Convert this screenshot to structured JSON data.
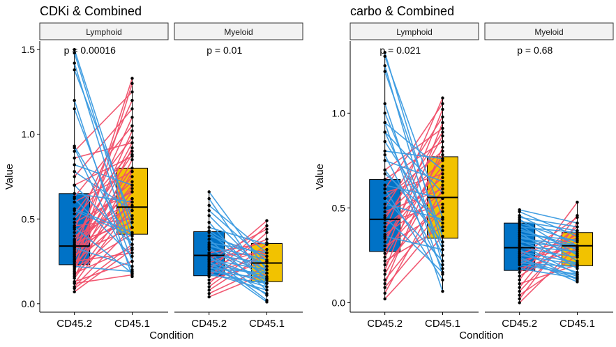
{
  "colors": {
    "box_CD45.2": "#0072C6",
    "box_CD45.1": "#F2C200",
    "line_up": "#F0506A",
    "line_down": "#3B9BE0",
    "strip_fill": "#F2F2F2",
    "point": "#000000"
  },
  "chart_data": [
    {
      "type": "box",
      "title": "CDKi & Combined",
      "xlabel": "Condition",
      "ylabel": "Value",
      "ylim": [
        -0.05,
        1.55
      ],
      "yticks": [
        "0.0",
        "0.5",
        "1.0",
        "1.5"
      ],
      "categories": [
        "CD45.2",
        "CD45.1"
      ],
      "grid": false,
      "facets": [
        {
          "label": "Lymphoid",
          "p_value": "p = 0.00016",
          "boxes": [
            {
              "name": "CD45.2",
              "q1": 0.23,
              "median": 0.34,
              "q3": 0.65,
              "whisker_low": 0.07,
              "whisker_high": 1.5
            },
            {
              "name": "CD45.1",
              "q1": 0.41,
              "median": 0.57,
              "q3": 0.8,
              "whisker_low": 0.16,
              "whisker_high": 1.33
            }
          ],
          "pairs": [
            [
              0.07,
              0.32
            ],
            [
              0.09,
              0.35
            ],
            [
              0.1,
              0.45
            ],
            [
              0.12,
              0.58
            ],
            [
              0.13,
              0.25
            ],
            [
              0.15,
              0.62
            ],
            [
              0.16,
              0.78
            ],
            [
              0.17,
              0.5
            ],
            [
              0.18,
              0.33
            ],
            [
              0.2,
              0.85
            ],
            [
              0.21,
              0.41
            ],
            [
              0.22,
              0.66
            ],
            [
              0.23,
              0.92
            ],
            [
              0.24,
              0.55
            ],
            [
              0.25,
              0.3
            ],
            [
              0.26,
              1.02
            ],
            [
              0.27,
              0.7
            ],
            [
              0.28,
              0.6
            ],
            [
              0.29,
              0.45
            ],
            [
              0.3,
              0.8
            ],
            [
              0.31,
              0.95
            ],
            [
              0.32,
              0.52
            ],
            [
              0.33,
              0.68
            ],
            [
              0.34,
              0.75
            ],
            [
              0.35,
              1.1
            ],
            [
              0.36,
              0.48
            ],
            [
              0.37,
              0.62
            ],
            [
              0.38,
              0.88
            ],
            [
              0.4,
              0.57
            ],
            [
              0.42,
              0.72
            ],
            [
              0.44,
              1.2
            ],
            [
              0.46,
              0.5
            ],
            [
              0.48,
              0.66
            ],
            [
              0.5,
              0.9
            ],
            [
              0.53,
              0.98
            ],
            [
              0.56,
              0.42
            ],
            [
              0.6,
              0.78
            ],
            [
              0.63,
              1.05
            ],
            [
              0.65,
              0.6
            ],
            [
              0.7,
              0.87
            ],
            [
              0.75,
              1.15
            ],
            [
              0.78,
              0.55
            ],
            [
              0.82,
              0.7
            ],
            [
              0.86,
              0.95
            ],
            [
              0.9,
              1.25
            ],
            [
              0.93,
              0.35
            ],
            [
              0.28,
              1.33
            ],
            [
              0.19,
              1.3
            ],
            [
              1.5,
              0.45
            ],
            [
              1.48,
              0.38
            ],
            [
              1.42,
              0.3
            ],
            [
              1.38,
              0.5
            ],
            [
              1.2,
              0.16
            ],
            [
              1.15,
              0.25
            ],
            [
              0.92,
              0.2
            ],
            [
              0.7,
              0.35
            ],
            [
              0.62,
              0.28
            ],
            [
              0.55,
              0.4
            ],
            [
              0.45,
              0.18
            ],
            [
              0.33,
              0.22
            ],
            [
              0.22,
              0.19
            ],
            [
              0.12,
              0.17
            ]
          ]
        },
        {
          "label": "Myeloid",
          "p_value": "p = 0.01",
          "boxes": [
            {
              "name": "CD45.2",
              "q1": 0.165,
              "median": 0.285,
              "q3": 0.425,
              "whisker_low": 0.04,
              "whisker_high": 0.66
            },
            {
              "name": "CD45.1",
              "q1": 0.13,
              "median": 0.24,
              "q3": 0.355,
              "whisker_low": 0.01,
              "whisker_high": 0.49
            }
          ],
          "pairs": [
            [
              0.04,
              0.18
            ],
            [
              0.06,
              0.22
            ],
            [
              0.08,
              0.3
            ],
            [
              0.1,
              0.35
            ],
            [
              0.12,
              0.42
            ],
            [
              0.14,
              0.25
            ],
            [
              0.16,
              0.46
            ],
            [
              0.18,
              0.28
            ],
            [
              0.2,
              0.49
            ],
            [
              0.22,
              0.32
            ],
            [
              0.24,
              0.38
            ],
            [
              0.26,
              0.44
            ],
            [
              0.28,
              0.3
            ],
            [
              0.3,
              0.36
            ],
            [
              0.66,
              0.2
            ],
            [
              0.62,
              0.12
            ],
            [
              0.58,
              0.3
            ],
            [
              0.55,
              0.25
            ],
            [
              0.52,
              0.18
            ],
            [
              0.48,
              0.1
            ],
            [
              0.45,
              0.35
            ],
            [
              0.43,
              0.22
            ],
            [
              0.42,
              0.15
            ],
            [
              0.4,
              0.28
            ],
            [
              0.38,
              0.08
            ],
            [
              0.36,
              0.3
            ],
            [
              0.35,
              0.2
            ],
            [
              0.34,
              0.26
            ],
            [
              0.33,
              0.12
            ],
            [
              0.32,
              0.18
            ],
            [
              0.3,
              0.05
            ],
            [
              0.29,
              0.24
            ],
            [
              0.28,
              0.02
            ],
            [
              0.27,
              0.14
            ],
            [
              0.26,
              0.2
            ],
            [
              0.25,
              0.01
            ],
            [
              0.24,
              0.16
            ],
            [
              0.23,
              0.12
            ],
            [
              0.22,
              0.06
            ],
            [
              0.21,
              0.18
            ],
            [
              0.2,
              0.1
            ],
            [
              0.19,
              0.15
            ],
            [
              0.18,
              0.08
            ],
            [
              0.17,
              0.12
            ]
          ]
        }
      ]
    },
    {
      "type": "box",
      "title": "carbo & Combined",
      "xlabel": "Condition",
      "ylabel": "Value",
      "ylim": [
        -0.05,
        1.38
      ],
      "yticks": [
        "0.0",
        "0.5",
        "1.0"
      ],
      "categories": [
        "CD45.2",
        "CD45.1"
      ],
      "grid": false,
      "facets": [
        {
          "label": "Lymphoid",
          "p_value": "p = 0.021",
          "boxes": [
            {
              "name": "CD45.2",
              "q1": 0.27,
              "median": 0.44,
              "q3": 0.65,
              "whisker_low": 0.02,
              "whisker_high": 1.32
            },
            {
              "name": "CD45.1",
              "q1": 0.34,
              "median": 0.555,
              "q3": 0.77,
              "whisker_low": 0.06,
              "whisker_high": 1.08
            }
          ],
          "pairs": [
            [
              0.02,
              0.35
            ],
            [
              0.05,
              0.6
            ],
            [
              0.08,
              0.45
            ],
            [
              0.1,
              0.82
            ],
            [
              0.12,
              0.5
            ],
            [
              0.15,
              0.7
            ],
            [
              0.17,
              0.95
            ],
            [
              0.2,
              0.55
            ],
            [
              0.22,
              0.4
            ],
            [
              0.24,
              0.78
            ],
            [
              0.26,
              1.02
            ],
            [
              0.28,
              0.62
            ],
            [
              0.3,
              0.48
            ],
            [
              0.32,
              0.88
            ],
            [
              0.34,
              0.72
            ],
            [
              0.36,
              0.58
            ],
            [
              0.38,
              1.08
            ],
            [
              0.4,
              0.66
            ],
            [
              0.42,
              0.52
            ],
            [
              0.44,
              0.9
            ],
            [
              0.46,
              0.75
            ],
            [
              0.48,
              0.6
            ],
            [
              0.5,
              0.98
            ],
            [
              0.52,
              0.44
            ],
            [
              0.55,
              0.8
            ],
            [
              0.58,
              0.68
            ],
            [
              0.6,
              1.05
            ],
            [
              0.62,
              0.55
            ],
            [
              0.65,
              0.85
            ],
            [
              0.68,
              0.42
            ],
            [
              0.7,
              0.92
            ],
            [
              0.75,
              0.64
            ],
            [
              0.8,
              0.76
            ],
            [
              0.85,
              0.38
            ],
            [
              0.9,
              0.58
            ],
            [
              0.95,
              0.7
            ],
            [
              1.32,
              0.3
            ],
            [
              1.3,
              0.45
            ],
            [
              1.25,
              0.2
            ],
            [
              1.22,
              0.35
            ],
            [
              1.05,
              0.15
            ],
            [
              1.0,
              0.28
            ],
            [
              0.95,
              0.06
            ],
            [
              0.9,
              0.25
            ],
            [
              0.78,
              0.18
            ],
            [
              0.7,
              0.32
            ],
            [
              0.6,
              0.12
            ],
            [
              0.55,
              0.22
            ],
            [
              0.35,
              0.28
            ],
            [
              0.45,
              0.16
            ]
          ]
        },
        {
          "label": "Myeloid",
          "p_value": "p = 0.68",
          "boxes": [
            {
              "name": "CD45.2",
              "q1": 0.17,
              "median": 0.29,
              "q3": 0.42,
              "whisker_low": 0.0,
              "whisker_high": 0.49
            },
            {
              "name": "CD45.1",
              "q1": 0.195,
              "median": 0.3,
              "q3": 0.37,
              "whisker_low": 0.11,
              "whisker_high": 0.53
            }
          ],
          "pairs": [
            [
              0.0,
              0.3
            ],
            [
              0.02,
              0.42
            ],
            [
              0.04,
              0.25
            ],
            [
              0.06,
              0.38
            ],
            [
              0.08,
              0.46
            ],
            [
              0.1,
              0.2
            ],
            [
              0.12,
              0.53
            ],
            [
              0.14,
              0.33
            ],
            [
              0.16,
              0.4
            ],
            [
              0.18,
              0.28
            ],
            [
              0.2,
              0.36
            ],
            [
              0.22,
              0.3
            ],
            [
              0.24,
              0.45
            ],
            [
              0.26,
              0.34
            ],
            [
              0.49,
              0.42
            ],
            [
              0.48,
              0.35
            ],
            [
              0.46,
              0.3
            ],
            [
              0.45,
              0.4
            ],
            [
              0.44,
              0.25
            ],
            [
              0.43,
              0.38
            ],
            [
              0.42,
              0.32
            ],
            [
              0.41,
              0.22
            ],
            [
              0.4,
              0.37
            ],
            [
              0.39,
              0.28
            ],
            [
              0.38,
              0.3
            ],
            [
              0.37,
              0.18
            ],
            [
              0.36,
              0.33
            ],
            [
              0.35,
              0.26
            ],
            [
              0.34,
              0.3
            ],
            [
              0.33,
              0.2
            ],
            [
              0.32,
              0.29
            ],
            [
              0.31,
              0.15
            ],
            [
              0.3,
              0.27
            ],
            [
              0.29,
              0.24
            ],
            [
              0.28,
              0.12
            ],
            [
              0.27,
              0.21
            ],
            [
              0.26,
              0.16
            ],
            [
              0.25,
              0.2
            ],
            [
              0.24,
              0.11
            ],
            [
              0.23,
              0.14
            ],
            [
              0.22,
              0.13
            ],
            [
              0.21,
              0.19
            ],
            [
              0.2,
              0.15
            ],
            [
              0.18,
              0.13
            ]
          ]
        }
      ]
    }
  ]
}
